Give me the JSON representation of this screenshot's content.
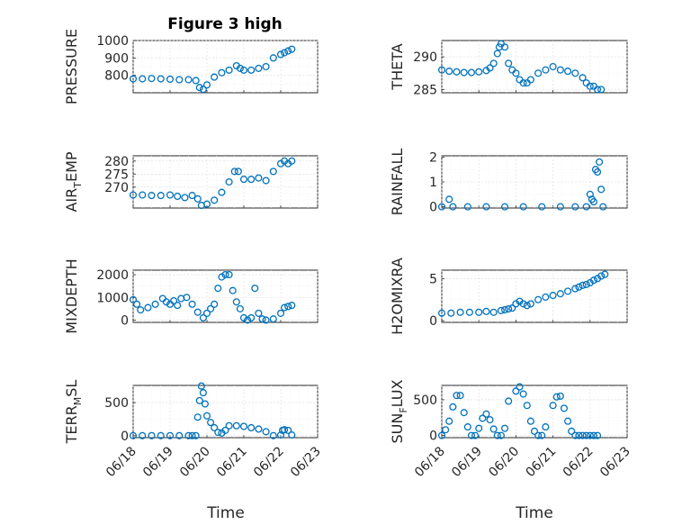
{
  "figure": {
    "title": "Figure 3 high",
    "marker_color": "#0072BD",
    "xlabels": [
      "Time",
      "Time"
    ]
  },
  "chart_data": [
    {
      "type": "scatter",
      "title": "Figure 3 high",
      "ylabel": "PRESSURE",
      "xlabel": "",
      "xlim": [
        0,
        5
      ],
      "ylim": [
        700,
        1000
      ],
      "yticks": [
        800,
        900,
        1000
      ],
      "xtick_labels": [
        "06/18",
        "06/19",
        "06/20",
        "06/21",
        "06/22",
        "06/23"
      ],
      "show_xticklabels": false,
      "grid": true,
      "series": [
        {
          "x": [
            0.0,
            0.25,
            0.5,
            0.75,
            1.0,
            1.25,
            1.5,
            1.7,
            1.8,
            1.9,
            2.0,
            2.2,
            2.4,
            2.6,
            2.8,
            2.9,
            3.0,
            3.2,
            3.4,
            3.6,
            3.8,
            4.0,
            4.1,
            4.2,
            4.3
          ],
          "y": [
            780,
            780,
            782,
            780,
            778,
            775,
            775,
            770,
            730,
            720,
            745,
            790,
            815,
            830,
            855,
            840,
            830,
            830,
            840,
            850,
            900,
            920,
            930,
            940,
            950
          ]
        }
      ]
    },
    {
      "type": "scatter",
      "title": "",
      "ylabel": "THETA",
      "xlabel": "",
      "xlim": [
        0,
        5
      ],
      "ylim": [
        284.5,
        292.5
      ],
      "yticks": [
        285,
        290
      ],
      "xtick_labels": [
        "06/18",
        "06/19",
        "06/20",
        "06/21",
        "06/22",
        "06/23"
      ],
      "show_xticklabels": false,
      "grid": true,
      "series": [
        {
          "x": [
            0.0,
            0.2,
            0.4,
            0.6,
            0.8,
            1.0,
            1.2,
            1.3,
            1.4,
            1.5,
            1.55,
            1.6,
            1.7,
            1.8,
            1.9,
            2.0,
            2.1,
            2.2,
            2.3,
            2.4,
            2.6,
            2.8,
            3.0,
            3.2,
            3.4,
            3.6,
            3.8,
            3.9,
            4.0,
            4.1,
            4.2,
            4.3
          ],
          "y": [
            288,
            287.8,
            287.7,
            287.6,
            287.6,
            287.7,
            287.9,
            288.3,
            289,
            290.5,
            291.5,
            292,
            291.5,
            289,
            288,
            287.5,
            286.5,
            286,
            286,
            286.5,
            287.5,
            288,
            288.5,
            288,
            287.8,
            287.5,
            286.8,
            286,
            285.5,
            285.5,
            285,
            285
          ]
        }
      ]
    },
    {
      "type": "scatter",
      "title": "",
      "ylabel": "AIR_TEMP",
      "xlabel": "",
      "xlim": [
        0,
        5
      ],
      "ylim": [
        262,
        282
      ],
      "yticks": [
        270,
        275,
        280
      ],
      "xtick_labels": [
        "06/18",
        "06/19",
        "06/20",
        "06/21",
        "06/22",
        "06/23"
      ],
      "show_xticklabels": false,
      "grid": true,
      "series": [
        {
          "x": [
            0.0,
            0.25,
            0.5,
            0.75,
            1.0,
            1.2,
            1.4,
            1.6,
            1.75,
            1.85,
            2.0,
            2.2,
            2.4,
            2.6,
            2.75,
            2.85,
            3.0,
            3.2,
            3.4,
            3.6,
            3.8,
            4.0,
            4.1,
            4.2,
            4.3
          ],
          "y": [
            267,
            267,
            266.8,
            266.8,
            267,
            266.5,
            266,
            266.8,
            265.5,
            263,
            263.5,
            265,
            268,
            272,
            276,
            276,
            273,
            273,
            273.5,
            272.5,
            276,
            279,
            280,
            279,
            280
          ]
        }
      ]
    },
    {
      "type": "scatter",
      "title": "",
      "ylabel": "RAINFALL",
      "xlabel": "",
      "xlim": [
        0,
        5
      ],
      "ylim": [
        -0.05,
        2.05
      ],
      "yticks": [
        0,
        1,
        2
      ],
      "xtick_labels": [
        "06/18",
        "06/19",
        "06/20",
        "06/21",
        "06/22",
        "06/23"
      ],
      "show_xticklabels": false,
      "grid": true,
      "series": [
        {
          "x": [
            0.0,
            0.3,
            0.2,
            0.7,
            1.2,
            1.7,
            2.2,
            2.7,
            3.2,
            3.6,
            3.9,
            4.0,
            4.05,
            4.1,
            4.15,
            4.2,
            4.25,
            4.3,
            4.35
          ],
          "y": [
            0,
            0,
            0.3,
            0,
            0,
            0,
            0,
            0,
            0,
            0,
            0,
            0.5,
            0.3,
            0.2,
            1.5,
            1.4,
            1.8,
            0.7,
            0
          ]
        }
      ]
    },
    {
      "type": "scatter",
      "title": "",
      "ylabel": "MIXDEPTH",
      "xlabel": "",
      "xlim": [
        0,
        5
      ],
      "ylim": [
        -100,
        2200
      ],
      "yticks": [
        0,
        1000,
        2000
      ],
      "xtick_labels": [
        "06/18",
        "06/19",
        "06/20",
        "06/21",
        "06/22",
        "06/23"
      ],
      "show_xticklabels": false,
      "grid": true,
      "series": [
        {
          "x": [
            0.0,
            0.1,
            0.2,
            0.4,
            0.6,
            0.8,
            0.9,
            1.0,
            1.1,
            1.2,
            1.3,
            1.45,
            1.6,
            1.75,
            1.9,
            2.0,
            2.1,
            2.2,
            2.3,
            2.4,
            2.5,
            2.6,
            2.7,
            2.8,
            2.9,
            3.0,
            3.1,
            3.2,
            3.3,
            3.4,
            3.5,
            3.6,
            3.8,
            4.0,
            4.1,
            4.2,
            4.3
          ],
          "y": [
            900,
            700,
            450,
            550,
            700,
            950,
            800,
            700,
            850,
            650,
            950,
            1000,
            700,
            350,
            100,
            300,
            500,
            700,
            1400,
            1900,
            2000,
            2000,
            1300,
            800,
            500,
            100,
            0,
            100,
            1400,
            300,
            50,
            0,
            50,
            300,
            550,
            600,
            650
          ]
        }
      ]
    },
    {
      "type": "scatter",
      "title": "",
      "ylabel": "H2OMIXRA",
      "xlabel": "",
      "xlim": [
        0,
        5
      ],
      "ylim": [
        -0.2,
        6
      ],
      "yticks": [
        0,
        5
      ],
      "xtick_labels": [
        "06/18",
        "06/19",
        "06/20",
        "06/21",
        "06/22",
        "06/23"
      ],
      "show_xticklabels": false,
      "grid": true,
      "series": [
        {
          "x": [
            0.0,
            0.25,
            0.5,
            0.75,
            1.0,
            1.2,
            1.4,
            1.6,
            1.7,
            1.8,
            1.9,
            2.0,
            2.1,
            2.2,
            2.3,
            2.4,
            2.6,
            2.8,
            3.0,
            3.2,
            3.4,
            3.6,
            3.7,
            3.8,
            3.9,
            4.0,
            4.1,
            4.2,
            4.3,
            4.4
          ],
          "y": [
            0.9,
            0.9,
            1,
            1,
            1,
            1.1,
            1,
            1.2,
            1.3,
            1.4,
            1.5,
            2,
            2.3,
            2,
            1.8,
            2,
            2.5,
            2.8,
            3,
            3.2,
            3.5,
            3.8,
            4,
            4.2,
            4.3,
            4.5,
            4.8,
            5,
            5.3,
            5.5
          ]
        }
      ]
    },
    {
      "type": "scatter",
      "title": "",
      "ylabel": "TERR_MSL",
      "xlabel": "Time",
      "xlim": [
        0,
        5
      ],
      "ylim": [
        -30,
        760
      ],
      "yticks": [
        0,
        500
      ],
      "xtick_labels": [
        "06/18",
        "06/19",
        "06/20",
        "06/21",
        "06/22",
        "06/23"
      ],
      "show_xticklabels": true,
      "grid": true,
      "series": [
        {
          "x": [
            0.0,
            0.25,
            0.5,
            0.75,
            1.0,
            1.25,
            1.5,
            1.6,
            1.7,
            1.75,
            1.8,
            1.85,
            1.9,
            1.95,
            2.0,
            2.1,
            2.2,
            2.3,
            2.4,
            2.5,
            2.6,
            2.8,
            3.0,
            3.2,
            3.4,
            3.6,
            3.8,
            4.0,
            4.05,
            4.1,
            4.2,
            4.3
          ],
          "y": [
            0,
            0,
            0,
            0,
            0,
            0,
            0,
            0,
            0,
            280,
            530,
            750,
            650,
            480,
            300,
            200,
            120,
            50,
            40,
            80,
            150,
            150,
            140,
            120,
            100,
            60,
            0,
            10,
            80,
            90,
            80,
            10
          ]
        }
      ]
    },
    {
      "type": "scatter",
      "title": "",
      "ylabel": "SUN_FLUX",
      "xlabel": "Time",
      "xlim": [
        0,
        5
      ],
      "ylim": [
        -30,
        700
      ],
      "yticks": [
        0,
        500
      ],
      "xtick_labels": [
        "06/18",
        "06/19",
        "06/20",
        "06/21",
        "06/22",
        "06/23"
      ],
      "show_xticklabels": true,
      "grid": true,
      "series": [
        {
          "x": [
            0.0,
            0.1,
            0.2,
            0.3,
            0.4,
            0.5,
            0.6,
            0.7,
            0.8,
            0.9,
            1.0,
            1.1,
            1.2,
            1.3,
            1.4,
            1.5,
            1.6,
            1.7,
            1.8,
            2.0,
            2.1,
            2.2,
            2.3,
            2.4,
            2.5,
            2.6,
            2.7,
            2.8,
            3.0,
            3.1,
            3.2,
            3.3,
            3.4,
            3.5,
            3.6,
            3.7,
            3.8,
            3.9,
            4.0,
            4.1,
            4.2
          ],
          "y": [
            0,
            80,
            200,
            400,
            560,
            560,
            320,
            120,
            0,
            0,
            100,
            240,
            300,
            220,
            90,
            0,
            0,
            100,
            480,
            620,
            680,
            580,
            420,
            200,
            60,
            0,
            0,
            120,
            420,
            540,
            550,
            380,
            200,
            60,
            0,
            0,
            0,
            0,
            0,
            0,
            0
          ]
        }
      ]
    }
  ]
}
